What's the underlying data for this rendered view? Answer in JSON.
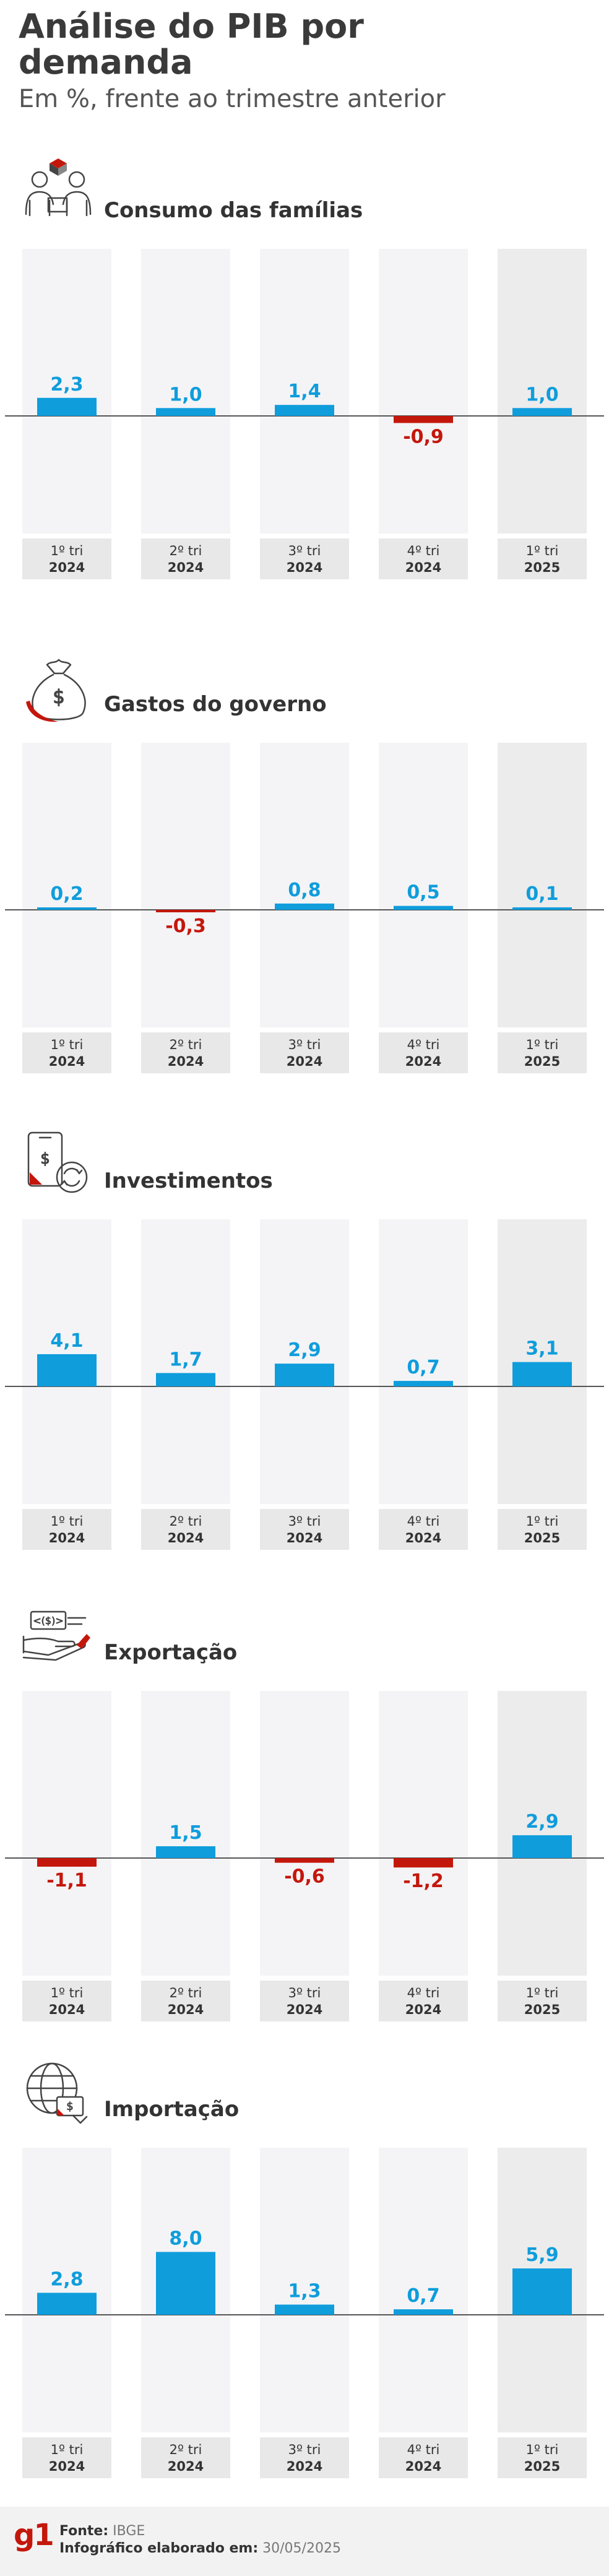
{
  "header": {
    "title": "Análise do PIB por demanda",
    "subtitle": "Em %, frente ao trimestre anterior"
  },
  "colors": {
    "positive": "#0f9ddc",
    "negative": "#c4170c",
    "column_bg": "#f4f4f6",
    "column_bg_last": "#ececec",
    "label_bg": "#e8e8e8",
    "brand": "#c4170c"
  },
  "footer": {
    "logo": "g1",
    "source_label": "Fonte:",
    "source_value": "IBGE",
    "credit_label": "Infográfico elaborado em:",
    "credit_value": "30/05/2025"
  },
  "chart_data": [
    {
      "type": "bar",
      "title": "Consumo das famílias",
      "icon": "family-consumption-icon",
      "categories": [
        [
          "1º tri",
          "2024"
        ],
        [
          "2º tri",
          "2024"
        ],
        [
          "3º tri",
          "2024"
        ],
        [
          "4º tri",
          "2024"
        ],
        [
          "1º tri",
          "2025"
        ]
      ],
      "values": [
        2.3,
        1.0,
        1.4,
        -0.9,
        1.0
      ],
      "labels": [
        "2,3",
        "1,0",
        "1,4",
        "-0,9",
        "1,0"
      ]
    },
    {
      "type": "bar",
      "title": "Gastos do governo",
      "icon": "money-bag-icon",
      "categories": [
        [
          "1º tri",
          "2024"
        ],
        [
          "2º tri",
          "2024"
        ],
        [
          "3º tri",
          "2024"
        ],
        [
          "4º tri",
          "2024"
        ],
        [
          "1º tri",
          "2025"
        ]
      ],
      "values": [
        0.2,
        -0.3,
        0.8,
        0.5,
        0.1
      ],
      "labels": [
        "0,2",
        "-0,3",
        "0,8",
        "0,5",
        "0,1"
      ]
    },
    {
      "type": "bar",
      "title": "Investimentos",
      "icon": "investment-icon",
      "categories": [
        [
          "1º tri",
          "2024"
        ],
        [
          "2º tri",
          "2024"
        ],
        [
          "3º tri",
          "2024"
        ],
        [
          "4º tri",
          "2024"
        ],
        [
          "1º tri",
          "2025"
        ]
      ],
      "values": [
        4.1,
        1.7,
        2.9,
        0.7,
        3.1
      ],
      "labels": [
        "4,1",
        "1,7",
        "2,9",
        "0,7",
        "3,1"
      ]
    },
    {
      "type": "bar",
      "title": "Exportação",
      "icon": "export-hand-icon",
      "categories": [
        [
          "1º tri",
          "2024"
        ],
        [
          "2º tri",
          "2024"
        ],
        [
          "3º tri",
          "2024"
        ],
        [
          "4º tri",
          "2024"
        ],
        [
          "1º tri",
          "2025"
        ]
      ],
      "values": [
        -1.1,
        1.5,
        -0.6,
        -1.2,
        2.9
      ],
      "labels": [
        "-1,1",
        "1,5",
        "-0,6",
        "-1,2",
        "2,9"
      ]
    },
    {
      "type": "bar",
      "title": "Importação",
      "icon": "import-globe-icon",
      "categories": [
        [
          "1º tri",
          "2024"
        ],
        [
          "2º tri",
          "2024"
        ],
        [
          "3º tri",
          "2024"
        ],
        [
          "4º tri",
          "2024"
        ],
        [
          "1º tri",
          "2025"
        ]
      ],
      "values": [
        2.8,
        8.0,
        1.3,
        0.7,
        5.9
      ],
      "labels": [
        "2,8",
        "8,0",
        "1,3",
        "0,7",
        "5,9"
      ]
    }
  ]
}
